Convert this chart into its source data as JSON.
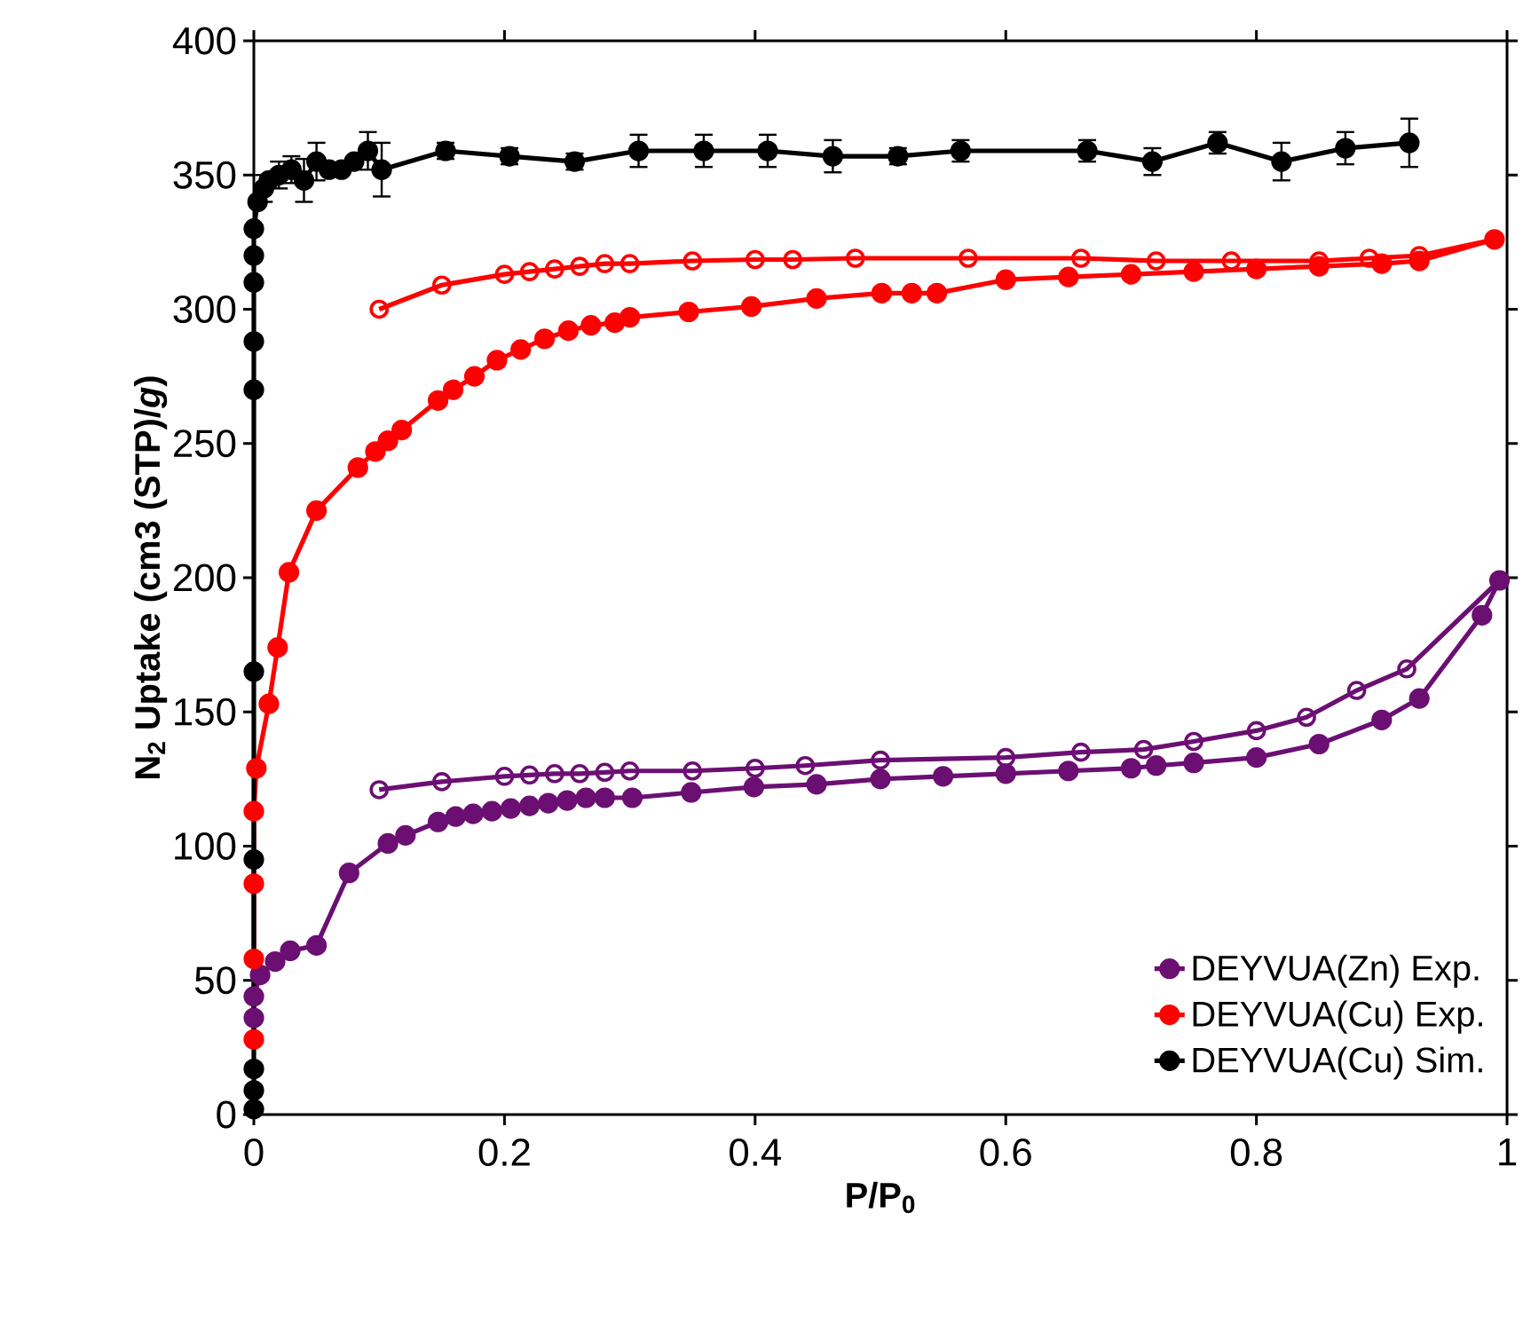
{
  "chart_data": {
    "type": "line",
    "xlabel": "P/P$_{0}$",
    "ylabel": "N$_{2}$ Uptake (cm3 (STP)/*g*)",
    "xlim": [
      0,
      1
    ],
    "ylim": [
      0,
      400
    ],
    "xticks": [
      0,
      0.2,
      0.4,
      0.6,
      0.8,
      1
    ],
    "yticks": [
      0,
      50,
      100,
      150,
      200,
      250,
      300,
      350,
      400
    ],
    "legend": "bottom right",
    "marker": "circle",
    "line_style": "solid",
    "series": [
      {
        "name": "DEYVUA(Zn) Exp.",
        "color": "#6b0f73",
        "x": [
          0,
          0,
          0.005,
          0.017,
          0.029,
          0.05,
          0.076,
          0.107,
          0.121,
          0.147,
          0.161,
          0.175,
          0.19,
          0.205,
          0.22,
          0.235,
          0.25,
          0.265,
          0.28,
          0.302,
          0.349,
          0.399,
          0.449,
          0.5,
          0.55,
          0.6,
          0.65,
          0.7,
          0.72,
          0.75,
          0.8,
          0.85,
          0.9,
          0.93,
          0.98,
          0.994
        ],
        "values": [
          36,
          44,
          52,
          57,
          61,
          63,
          90,
          101,
          104,
          109,
          111,
          112,
          113,
          114,
          115,
          116,
          117,
          118,
          118,
          118,
          120,
          122,
          123,
          125,
          126,
          127,
          128,
          129,
          130,
          131,
          133,
          138,
          147,
          155,
          186,
          199
        ]
      },
      {
        "color": "#6b0f73",
        "marker": "open circle",
        "x": [
          0.994,
          0.92,
          0.88,
          0.84,
          0.8,
          0.75,
          0.71,
          0.66,
          0.6,
          0.5,
          0.44,
          0.4,
          0.35,
          0.3,
          0.28,
          0.26,
          0.24,
          0.22,
          0.2,
          0.15,
          0.1
        ],
        "values": [
          199,
          166,
          158,
          148,
          143,
          139,
          136,
          135,
          133,
          132,
          130,
          129,
          128,
          128,
          127.5,
          127,
          127,
          126.5,
          126,
          124,
          121
        ]
      },
      {
        "name": "DEYVUA(Cu) Exp.",
        "color": "#ff0000",
        "x": [
          0,
          0,
          0,
          0,
          0.002,
          0.012,
          0.019,
          0.028,
          0.05,
          0.083,
          0.097,
          0.107,
          0.118,
          0.147,
          0.159,
          0.176,
          0.194,
          0.213,
          0.232,
          0.251,
          0.269,
          0.288,
          0.3,
          0.347,
          0.397,
          0.449,
          0.501,
          0.525,
          0.545,
          0.6,
          0.65,
          0.7,
          0.75,
          0.8,
          0.85,
          0.9,
          0.93,
          0.99
        ],
        "values": [
          28,
          58,
          86,
          113,
          129,
          153,
          174,
          202,
          225,
          241,
          247,
          251,
          255,
          266,
          270,
          275,
          281,
          285,
          289,
          292,
          294,
          295,
          297,
          299,
          301,
          304,
          306,
          306,
          306,
          311,
          312,
          313,
          314,
          315,
          316,
          317,
          318,
          326
        ]
      },
      {
        "color": "#ff0000",
        "marker": "open circle",
        "x": [
          0.99,
          0.93,
          0.89,
          0.85,
          0.78,
          0.72,
          0.66,
          0.57,
          0.48,
          0.43,
          0.4,
          0.35,
          0.3,
          0.28,
          0.26,
          0.24,
          0.22,
          0.2,
          0.15,
          0.1
        ],
        "values": [
          326,
          320,
          319,
          318,
          318,
          318,
          319,
          319,
          319,
          318.5,
          318.5,
          318,
          317,
          317,
          316,
          315,
          314,
          313,
          309,
          300
        ]
      },
      {
        "name": "DEYVUA(Cu) Sim.",
        "color": "#000000",
        "x": [
          0,
          0,
          0,
          0,
          0,
          0,
          0,
          0,
          0,
          0,
          0.003,
          0.008,
          0.012,
          0.02,
          0.03,
          0.04,
          0.05,
          0.06,
          0.07,
          0.08,
          0.091,
          0.102,
          0.153,
          0.204,
          0.256,
          0.307,
          0.359,
          0.41,
          0.462,
          0.514,
          0.564,
          0.665,
          0.717,
          0.769,
          0.82,
          0.871,
          0.922
        ],
        "values": [
          2,
          9,
          17,
          95,
          165,
          270,
          288,
          310,
          320,
          330,
          340,
          345,
          348,
          350,
          352,
          348,
          355,
          352,
          352,
          355,
          359,
          352,
          359,
          357,
          355,
          359,
          359,
          359,
          357,
          357,
          359,
          359,
          355,
          362,
          355,
          360,
          362
        ],
        "errors": [
          null,
          null,
          null,
          null,
          null,
          null,
          null,
          null,
          null,
          null,
          null,
          5,
          null,
          5,
          5,
          8,
          7,
          null,
          null,
          null,
          7,
          10,
          3,
          3,
          3,
          6,
          6,
          6,
          6,
          3,
          4,
          4,
          5,
          4,
          7,
          6,
          9
        ]
      }
    ]
  }
}
